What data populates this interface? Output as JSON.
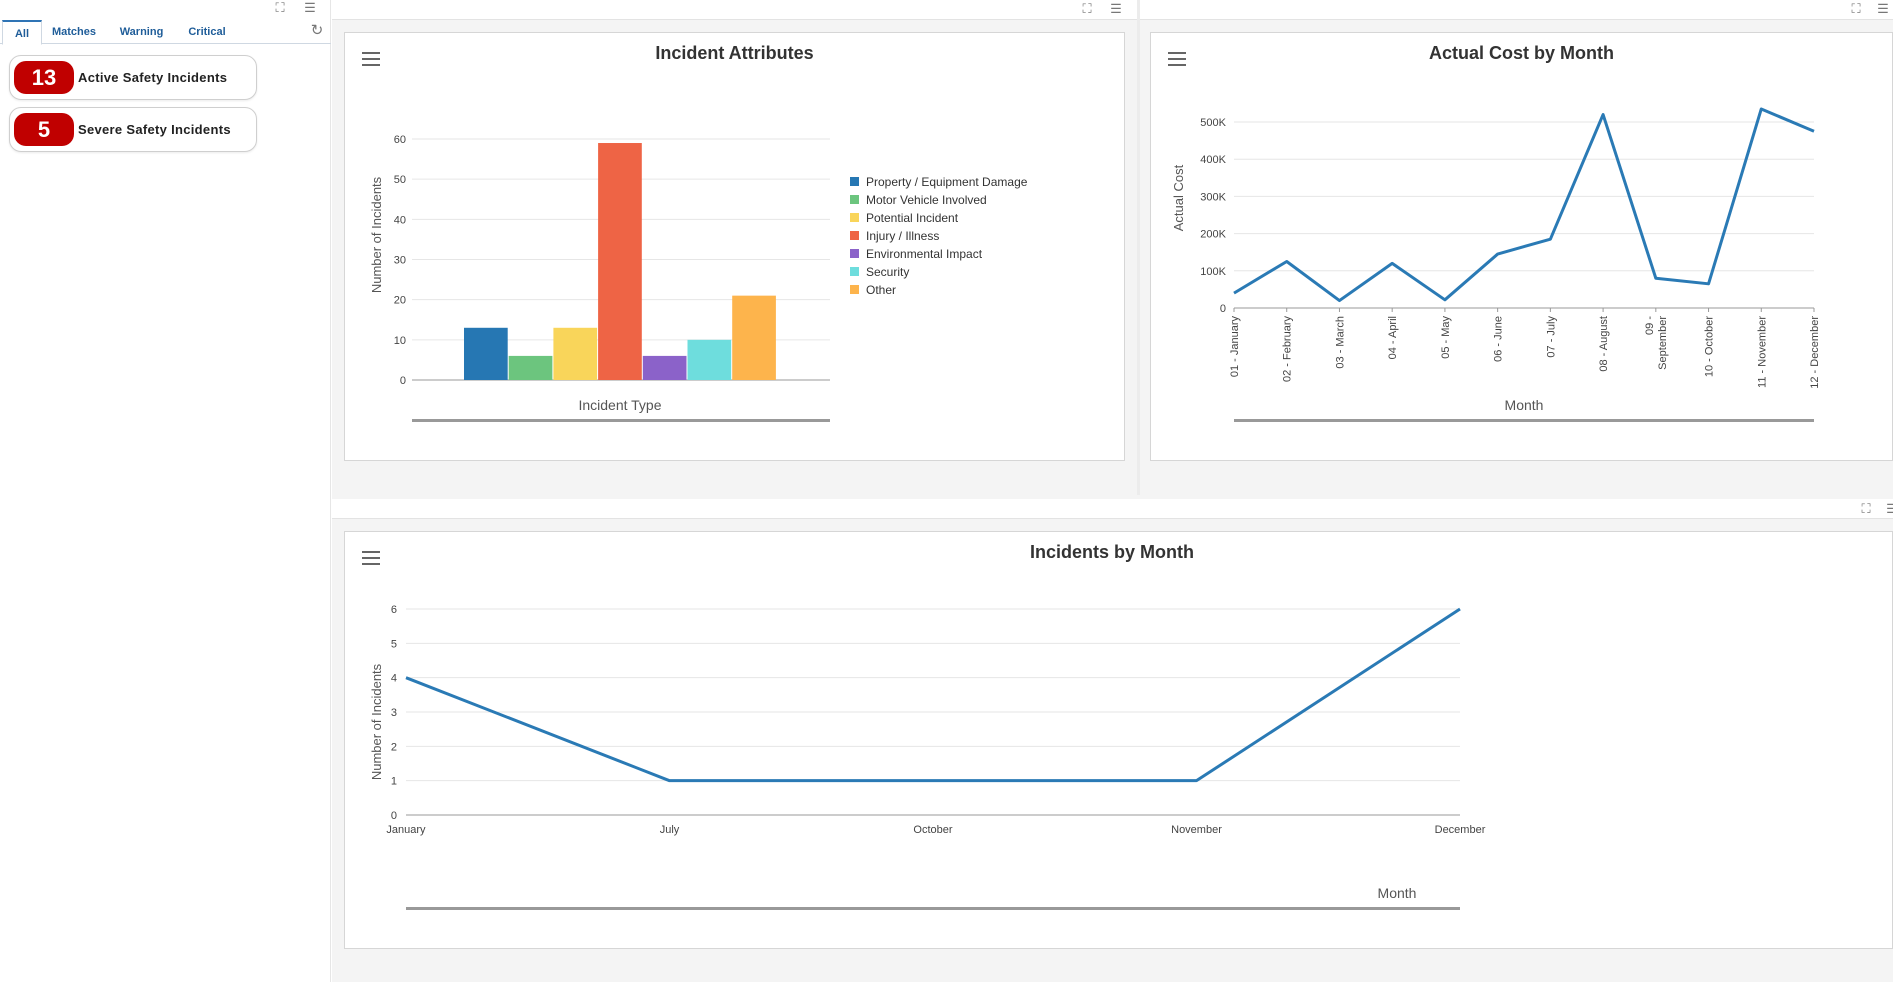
{
  "left": {
    "tabs": [
      {
        "label": "All",
        "active": true
      },
      {
        "label": "Matches",
        "active": false
      },
      {
        "label": "Warning",
        "active": false
      },
      {
        "label": "Critical",
        "active": false
      }
    ],
    "kpis": [
      {
        "value": "13",
        "label": "Active Safety Incidents"
      },
      {
        "value": "5",
        "label": "Severe Safety Incidents"
      }
    ]
  },
  "colors": {
    "badge_red": "#c00000",
    "line_blue": "#2a7ab5"
  },
  "chart_data": [
    {
      "type": "bar",
      "title": "Incident Attributes",
      "xlabel": "Incident Type",
      "ylabel": "Number of Incidents",
      "ylim": [
        0,
        60
      ],
      "yticks": [
        0,
        10,
        20,
        30,
        40,
        50,
        60
      ],
      "legend_position": "right",
      "series": [
        {
          "name": "Property / Equipment Damage",
          "value": 13,
          "color": "#2677b3"
        },
        {
          "name": "Motor Vehicle Involved",
          "value": 6,
          "color": "#6cc57e"
        },
        {
          "name": "Potential Incident",
          "value": 13,
          "color": "#f9d55a"
        },
        {
          "name": "Injury / Illness",
          "value": 59,
          "color": "#ee6445"
        },
        {
          "name": "Environmental Impact",
          "value": 6,
          "color": "#8b62c9"
        },
        {
          "name": "Security",
          "value": 10,
          "color": "#6edddd"
        },
        {
          "name": "Other",
          "value": 21,
          "color": "#fdb44c"
        }
      ]
    },
    {
      "type": "line",
      "title": "Actual Cost by Month",
      "xlabel": "Month",
      "ylabel": "Actual Cost",
      "ylim": [
        0,
        500000
      ],
      "yticks": [
        "0",
        "100K",
        "200K",
        "300K",
        "400K",
        "500K"
      ],
      "categories": [
        "01 - January",
        "02 - February",
        "03 - March",
        "04 - April",
        "05 - May",
        "06 - June",
        "07 - July",
        "08 - August",
        "09 - September",
        "10 - October",
        "11 - November",
        "12 - December"
      ],
      "values": [
        40000,
        125000,
        20000,
        120000,
        22000,
        145000,
        185000,
        520000,
        80000,
        65000,
        535000,
        475000
      ]
    },
    {
      "type": "line",
      "title": "Incidents by Month",
      "xlabel": "Month",
      "ylabel": "Number of Incidents",
      "ylim": [
        0,
        6
      ],
      "yticks": [
        0,
        1,
        2,
        3,
        4,
        5,
        6
      ],
      "categories": [
        "January",
        "July",
        "October",
        "November",
        "December"
      ],
      "values": [
        4,
        1,
        1,
        1,
        6
      ]
    }
  ]
}
